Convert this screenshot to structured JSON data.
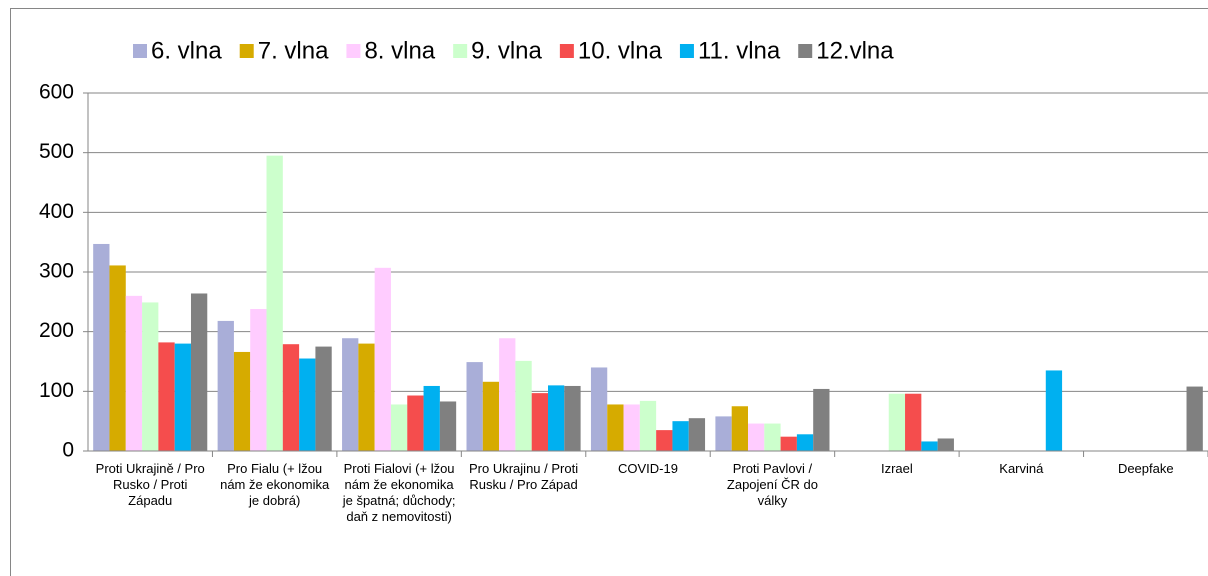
{
  "chart_data": {
    "type": "bar",
    "categories": [
      "Proti Ukrajině / Pro Rusko / Proti Západu",
      "Pro Fialu (+ lžou nám že ekonomika je dobrá)",
      "Proti Fialovi (+ lžou nám že ekonomika je špatná; důchody; daň z nemovitosti)",
      "Pro Ukrajinu / Proti Rusku / Pro Západ",
      "COVID-19",
      "Proti Pavlovi / Zapojení ČR do války",
      "Izrael",
      "Karviná",
      "Deepfake"
    ],
    "series": [
      {
        "name": "6. vlna",
        "color": "#a9aed8",
        "values": [
          347,
          218,
          189,
          149,
          140,
          58,
          null,
          null,
          null
        ]
      },
      {
        "name": "7. vlna",
        "color": "#d6ab00",
        "values": [
          311,
          166,
          180,
          116,
          78,
          75,
          null,
          null,
          null
        ]
      },
      {
        "name": "8. vlna",
        "color": "#ffccff",
        "values": [
          260,
          238,
          307,
          189,
          78,
          46,
          null,
          null,
          null
        ]
      },
      {
        "name": "9. vlna",
        "color": "#ccffcc",
        "values": [
          249,
          495,
          78,
          151,
          84,
          46,
          96,
          null,
          null
        ]
      },
      {
        "name": "10. vlna",
        "color": "#f54d4d",
        "values": [
          182,
          179,
          93,
          97,
          35,
          24,
          96,
          null,
          null
        ]
      },
      {
        "name": "11. vlna",
        "color": "#00b0f0",
        "values": [
          180,
          155,
          109,
          110,
          50,
          28,
          16,
          135,
          null
        ]
      },
      {
        "name": "12.vlna",
        "color": "#808080",
        "values": [
          264,
          175,
          83,
          109,
          55,
          104,
          21,
          null,
          108
        ]
      }
    ],
    "ylim": [
      0,
      600
    ],
    "yticks": [
      0,
      100,
      200,
      300,
      400,
      500,
      600
    ],
    "grid": true,
    "legend": "top"
  }
}
